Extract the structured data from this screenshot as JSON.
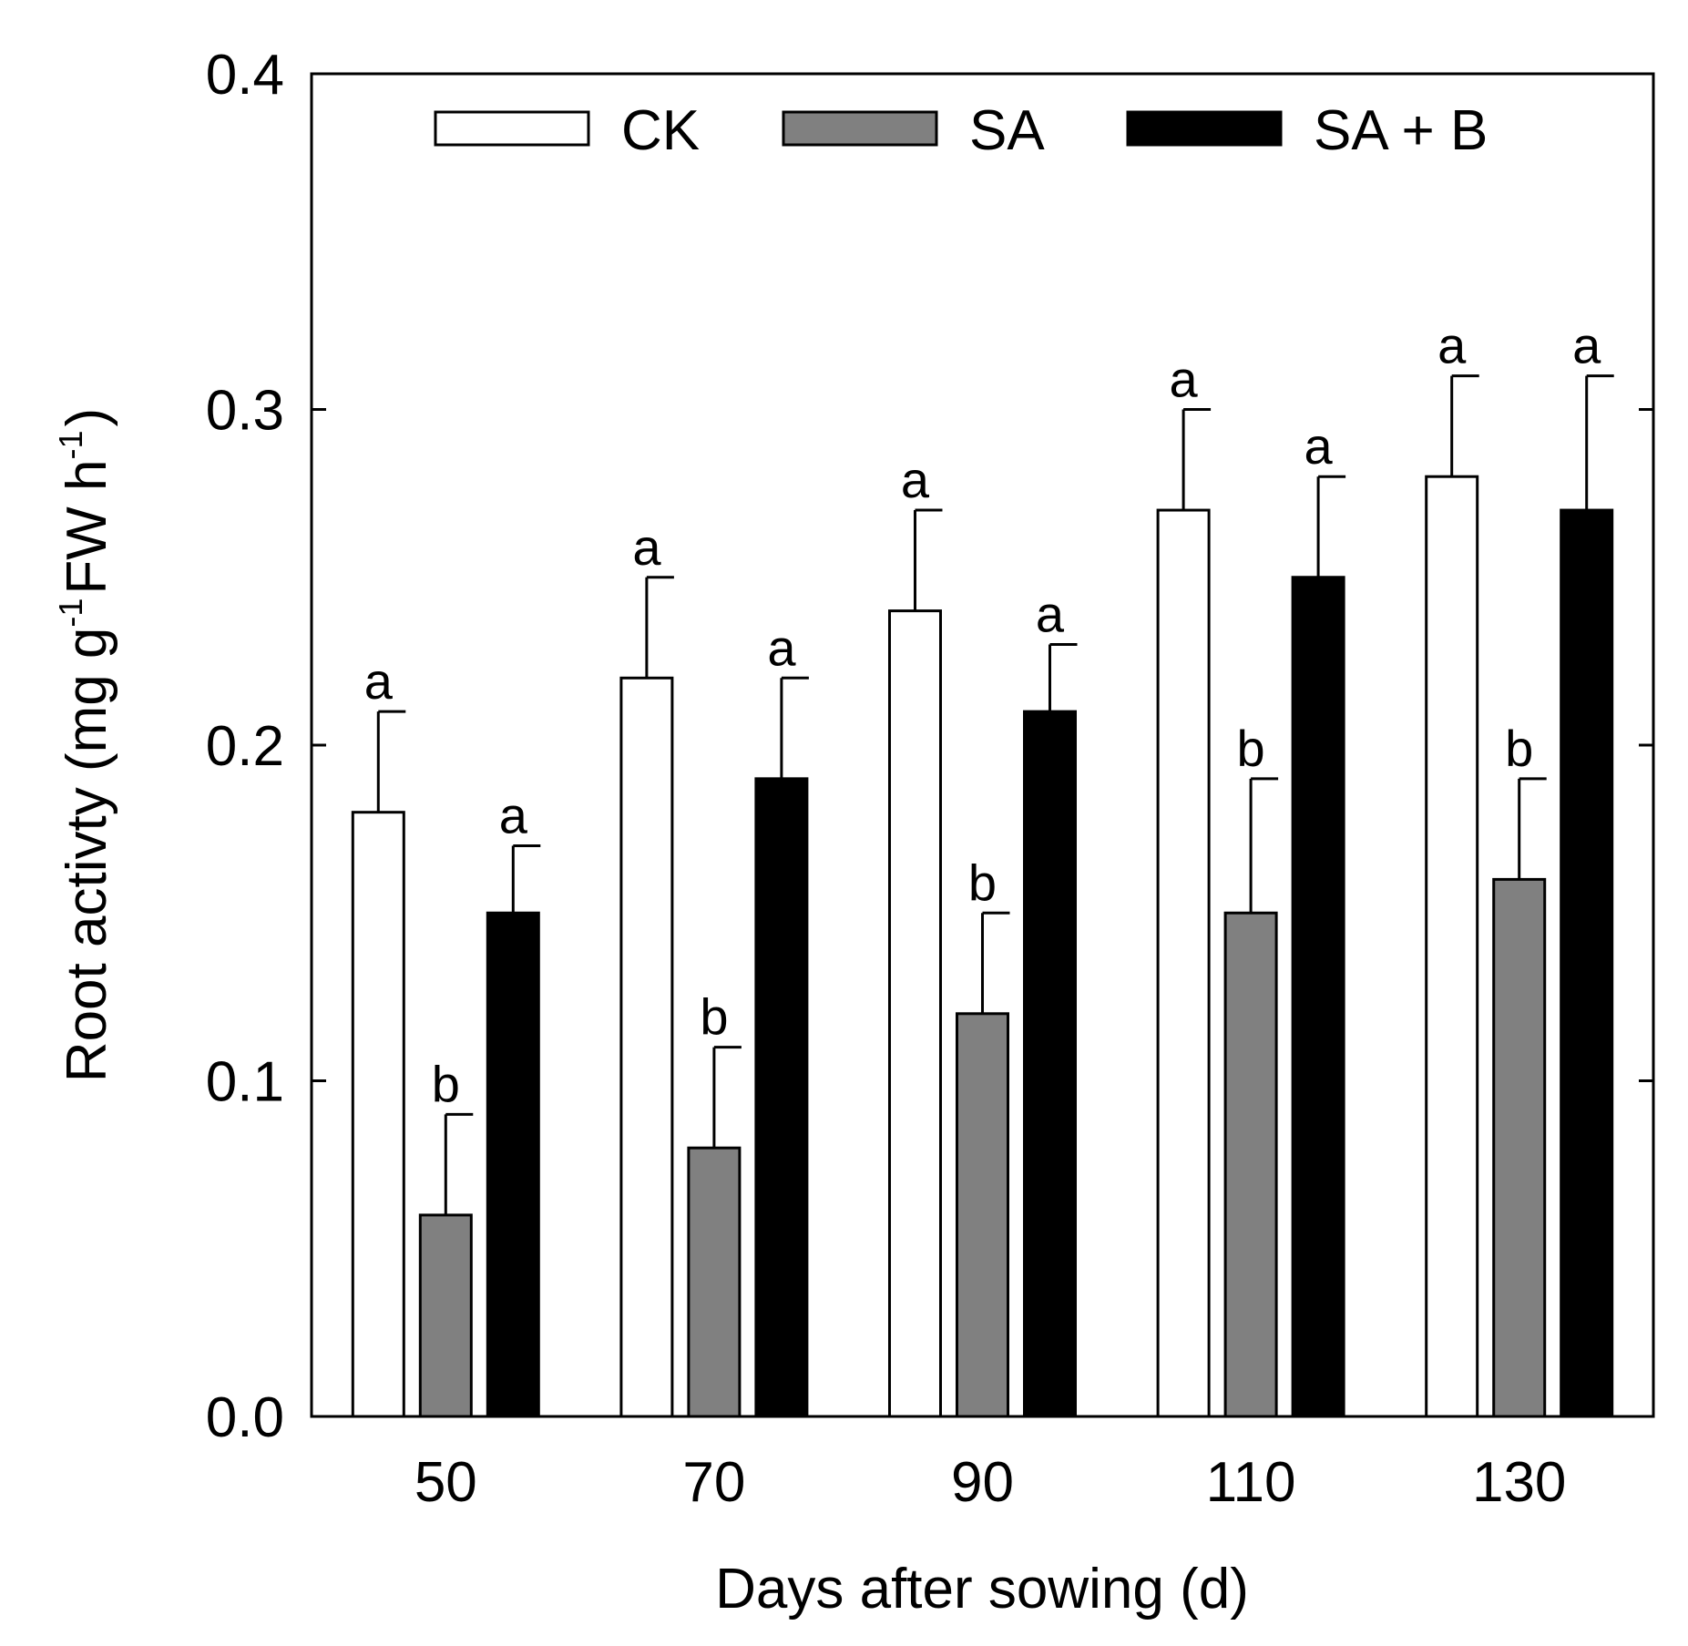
{
  "chart_data": {
    "type": "bar",
    "xlabel": "Days after sowing (d)",
    "ylabel": {
      "prefix": "Root activty (mg g",
      "sup1": "-1",
      "mid": "FW h",
      "sup2": "-1",
      "suffix": ")"
    },
    "ylim": [
      0,
      0.4
    ],
    "yticks": [
      "0.0",
      "0.1",
      "0.2",
      "0.3",
      "0.4"
    ],
    "ytick_values": [
      0,
      0.1,
      0.2,
      0.3,
      0.4
    ],
    "categories": [
      "50",
      "70",
      "90",
      "110",
      "130"
    ],
    "legend_position": "top",
    "series": [
      {
        "name": "CK",
        "color": "#ffffff",
        "values": [
          0.18,
          0.22,
          0.24,
          0.27,
          0.28
        ],
        "errors": [
          0.03,
          0.03,
          0.03,
          0.03,
          0.03
        ],
        "letters": [
          "a",
          "a",
          "a",
          "a",
          "a"
        ]
      },
      {
        "name": "SA",
        "color": "#808080",
        "values": [
          0.06,
          0.08,
          0.12,
          0.15,
          0.16
        ],
        "errors": [
          0.03,
          0.03,
          0.03,
          0.04,
          0.03
        ],
        "letters": [
          "b",
          "b",
          "b",
          "b",
          "b"
        ]
      },
      {
        "name": "SA + B",
        "color": "#000000",
        "values": [
          0.15,
          0.19,
          0.21,
          0.25,
          0.27
        ],
        "errors": [
          0.02,
          0.03,
          0.02,
          0.03,
          0.04
        ],
        "letters": [
          "a",
          "a",
          "a",
          "a",
          "a"
        ]
      }
    ]
  }
}
